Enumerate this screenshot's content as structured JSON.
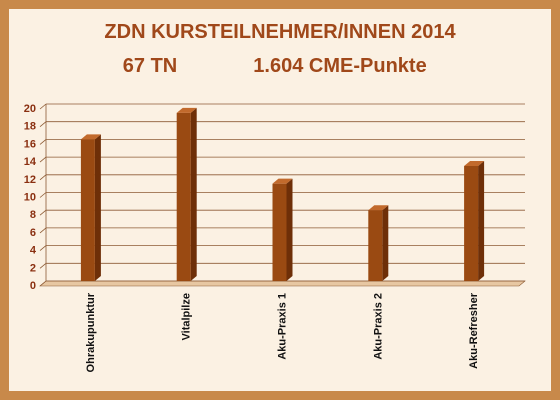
{
  "colors": {
    "border": "#c8894a",
    "panel": "#fbf1e3",
    "title": "#a0481a",
    "bar_front": "#9a4a12",
    "bar_side": "#6e2f08",
    "bar_top": "#c26a2c",
    "floor": "#e7c7a2",
    "grid": "#8c5a34",
    "axis_text": "#8a2f10",
    "label_text": "#111111"
  },
  "chart_data": {
    "type": "bar",
    "title_line1": "ZDN KURSTEILNEHMER/INNEN  2014",
    "title_line2_left": "67 TN",
    "title_line2_right": "1.604 CME-Punkte",
    "categories": [
      "Ohrakupunktur",
      "Vitalpilze",
      "Aku-Praxis 1",
      "Aku-Praxis 2",
      "Aku-Refresher"
    ],
    "values": [
      16,
      19,
      11,
      8,
      13
    ],
    "ylim": [
      0,
      20
    ],
    "yticks": [
      0,
      2,
      4,
      6,
      8,
      10,
      12,
      14,
      16,
      18,
      20
    ],
    "grid": true,
    "xlabel": "",
    "ylabel": ""
  }
}
